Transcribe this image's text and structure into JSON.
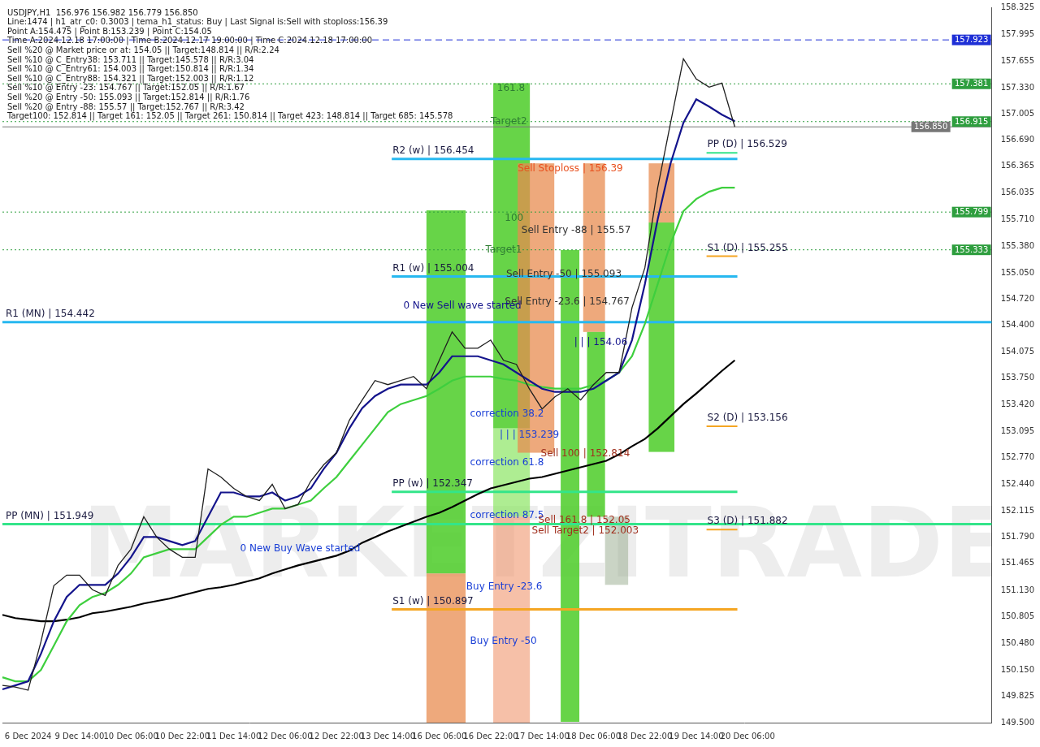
{
  "chart_data": {
    "type": "line",
    "header_lines": [
      "USDJPY,H1  156.976 156.982 156.779 156.850",
      "Line:1474 | h1_atr_c0: 0.3003 | tema_h1_status: Buy | Last Signal is:Sell with stoploss:156.39",
      "Point A:154.475 | Point B:153.239 | Point C:154.05",
      "Time A:2024.12.18 17:00:00 | Time B:2024.12.17 19:00:00 | Time C:2024.12.18 17:00:00",
      "Sell %20 @ Market price or at: 154.05 || Target:148.814 || R/R:2.24",
      "Sell %10 @ C_Entry38: 153.711 || Target:145.578 || R/R:3.04",
      "Sell %10 @ C_Entry61: 154.003 || Target:150.814 || R/R:1.34",
      "Sell %10 @ C_Entry88: 154.321 || Target:152.003 || R/R:1.12",
      "Sell %10 @ Entry -23: 154.767 || Target:152.05 || R/R:1.67",
      "Sell %20 @ Entry -50: 155.093 || Target:152.814 || R/R:1.76",
      "Sell %20 @ Entry -88: 155.57 || Target:152.767 || R/R:3.42",
      "Target100: 152.814 || Target 161: 152.05 || Target 261: 150.814 || Target 423: 148.814 || Target 685: 145.578"
    ],
    "watermark": "MARKETZITRADE",
    "categories": [
      null,
      null,
      "6 Dec 2024",
      null,
      null,
      null,
      "9 Dec 14:00",
      null,
      null,
      null,
      "10 Dec 06:00",
      null,
      null,
      null,
      "10 Dec 22:00",
      null,
      null,
      null,
      "11 Dec 14:00",
      null,
      null,
      null,
      "12 Dec 06:00",
      null,
      null,
      null,
      "12 Dec 22:00",
      null,
      null,
      null,
      "13 Dec 14:00",
      null,
      null,
      null,
      "16 Dec 06:00",
      null,
      null,
      null,
      "16 Dec 22:00",
      null,
      null,
      null,
      "17 Dec 14:00",
      null,
      null,
      null,
      "18 Dec 06:00",
      null,
      null,
      null,
      "18 Dec 22:00",
      null,
      null,
      null,
      "19 Dec 14:00",
      null,
      null,
      null,
      "20 Dec 06:00",
      null,
      null,
      null,
      null,
      null,
      null,
      null,
      null,
      null,
      null,
      null,
      null,
      null,
      null,
      null,
      null,
      null,
      null,
      null
    ],
    "series": [
      {
        "color": "#1f1f1f",
        "values": [
          149.96,
          149.94,
          149.9,
          150.5,
          151.19,
          151.32,
          151.32,
          151.14,
          151.07,
          151.44,
          151.64,
          152.04,
          151.79,
          151.64,
          151.54,
          151.54,
          152.63,
          152.53,
          152.39,
          152.29,
          152.24,
          152.44,
          152.14,
          152.19,
          152.48,
          152.68,
          152.83,
          153.23,
          153.48,
          153.72,
          153.67,
          153.72,
          153.77,
          153.62,
          153.97,
          154.32,
          154.12,
          154.12,
          154.22,
          153.97,
          153.92,
          153.62,
          153.37,
          153.52,
          153.62,
          153.48,
          153.67,
          153.82,
          153.82,
          154.62,
          155.11,
          156.1,
          156.9,
          157.69,
          157.44,
          157.34,
          157.39,
          156.85,
          null,
          null,
          null,
          null,
          null,
          null,
          null,
          null,
          null,
          null,
          null,
          null,
          null,
          null,
          null,
          null,
          null,
          null,
          null,
          null
        ]
      },
      {
        "color": "#14148c",
        "values": [
          149.91,
          149.96,
          150.01,
          150.35,
          150.75,
          151.05,
          151.2,
          151.2,
          151.2,
          151.34,
          151.54,
          151.79,
          151.79,
          151.74,
          151.69,
          151.74,
          152.04,
          152.34,
          152.34,
          152.29,
          152.29,
          152.34,
          152.24,
          152.29,
          152.39,
          152.63,
          152.83,
          153.13,
          153.38,
          153.53,
          153.62,
          153.67,
          153.67,
          153.67,
          153.82,
          154.02,
          154.02,
          154.02,
          153.97,
          153.92,
          153.82,
          153.72,
          153.62,
          153.58,
          153.58,
          153.58,
          153.62,
          153.72,
          153.82,
          154.22,
          154.91,
          155.71,
          156.4,
          156.9,
          157.19,
          157.1,
          157.0,
          156.92,
          null,
          null,
          null,
          null,
          null,
          null,
          null,
          null,
          null,
          null,
          null,
          null,
          null,
          null,
          null,
          null,
          null,
          null,
          null,
          null
        ]
      },
      {
        "color": "#3ecf3e",
        "values": [
          150.06,
          150.01,
          150.01,
          150.15,
          150.45,
          150.75,
          150.95,
          151.05,
          151.1,
          151.2,
          151.34,
          151.54,
          151.59,
          151.64,
          151.64,
          151.64,
          151.79,
          151.94,
          152.04,
          152.04,
          152.09,
          152.14,
          152.14,
          152.19,
          152.24,
          152.39,
          152.53,
          152.73,
          152.93,
          153.13,
          153.33,
          153.43,
          153.48,
          153.53,
          153.62,
          153.72,
          153.77,
          153.77,
          153.77,
          153.74,
          153.72,
          153.67,
          153.64,
          153.62,
          153.62,
          153.62,
          153.67,
          153.72,
          153.82,
          154.02,
          154.42,
          154.91,
          155.41,
          155.81,
          155.96,
          156.05,
          156.1,
          156.1,
          null,
          null,
          null,
          null,
          null,
          null,
          null,
          null,
          null,
          null,
          null,
          null,
          null,
          null,
          null,
          null,
          null,
          null,
          null,
          null
        ]
      },
      {
        "color": "#000000",
        "values": [
          150.83,
          150.79,
          150.77,
          150.75,
          150.75,
          150.77,
          150.8,
          150.85,
          150.87,
          150.9,
          150.93,
          150.97,
          151.0,
          151.03,
          151.07,
          151.11,
          151.15,
          151.17,
          151.2,
          151.24,
          151.28,
          151.34,
          151.39,
          151.44,
          151.48,
          151.52,
          151.56,
          151.62,
          151.72,
          151.79,
          151.86,
          151.92,
          151.98,
          152.04,
          152.09,
          152.16,
          152.24,
          152.32,
          152.39,
          152.43,
          152.47,
          152.51,
          152.53,
          152.57,
          152.61,
          152.65,
          152.69,
          152.73,
          152.81,
          152.91,
          153.0,
          153.13,
          153.28,
          153.43,
          153.56,
          153.7,
          153.84,
          153.97,
          null,
          null,
          null,
          null,
          null,
          null,
          null,
          null,
          null,
          null,
          null,
          null,
          null,
          null,
          null,
          null,
          null,
          null,
          null,
          null
        ]
      }
    ],
    "ylim": [
      149.5,
      158.325
    ],
    "yticks": [
      158.325,
      157.995,
      157.655,
      {
        "value": 157.33,
        "label": "157.330"
      },
      157.005,
      {
        "value": 156.69,
        "label": "156.690"
      },
      156.365,
      156.035,
      {
        "value": 155.71,
        "label": "155.710"
      },
      {
        "value": 155.38,
        "label": "155.380"
      },
      {
        "value": 155.05,
        "label": "155.050"
      },
      {
        "value": 154.72,
        "label": "154.720"
      },
      {
        "value": 154.4,
        "label": "154.400"
      },
      154.075,
      {
        "value": 153.75,
        "label": "153.750"
      },
      {
        "value": 153.42,
        "label": "153.420"
      },
      153.095,
      {
        "value": 152.77,
        "label": "152.770"
      },
      {
        "value": 152.44,
        "label": "152.440"
      },
      152.115,
      {
        "value": 151.79,
        "label": "151.790"
      },
      151.465,
      {
        "value": 151.13,
        "label": "151.130"
      },
      150.805,
      {
        "value": 150.48,
        "label": "150.480"
      },
      {
        "value": 150.15,
        "label": "150.150"
      },
      149.825,
      {
        "value": 149.5,
        "label": "149.500"
      }
    ],
    "grid": false,
    "zones": [
      {
        "x": [
          33.0,
          36.05
        ],
        "y": [
          151.34,
          155.82
        ],
        "color": "rgba(76,205,40,0.85)"
      },
      {
        "x": [
          33.0,
          36.05
        ],
        "y": [
          149.5,
          151.34
        ],
        "color": "rgba(232,140,80,0.75)"
      },
      {
        "x": [
          38.2,
          41.05
        ],
        "y": [
          153.13,
          157.39
        ],
        "color": "rgba(76,205,40,0.85)"
      },
      {
        "x": [
          38.2,
          41.05
        ],
        "y": [
          152.04,
          153.13
        ],
        "color": "rgba(140,230,100,0.7)"
      },
      {
        "x": [
          38.2,
          41.05
        ],
        "y": [
          149.5,
          152.04
        ],
        "color": "rgba(240,150,110,0.6)"
      },
      {
        "x": [
          40.1,
          42.95
        ],
        "y": [
          152.83,
          156.4
        ],
        "color": "rgba(232,140,80,0.75)"
      },
      {
        "x": [
          43.45,
          44.9
        ],
        "y": [
          149.51,
          155.33
        ],
        "color": "rgba(76,205,40,0.85)"
      },
      {
        "x": [
          45.2,
          46.9
        ],
        "y": [
          154.32,
          156.4
        ],
        "color": "rgba(232,140,80,0.75)"
      },
      {
        "x": [
          45.5,
          46.9
        ],
        "y": [
          152.04,
          154.32
        ],
        "color": "rgba(76,205,40,0.85)"
      },
      {
        "x": [
          46.9,
          48.7
        ],
        "y": [
          151.2,
          152.04
        ],
        "color": "rgba(150,170,140,0.5)"
      },
      {
        "x": [
          50.3,
          52.3
        ],
        "y": [
          155.67,
          156.4
        ],
        "color": "rgba(232,140,80,0.75)"
      },
      {
        "x": [
          50.3,
          52.3
        ],
        "y": [
          152.84,
          155.67
        ],
        "color": "rgba(76,205,40,0.85)"
      }
    ],
    "levels": [
      {
        "label": "R1 (MN) | 154.442",
        "value": 154.442,
        "color": "#27b8f0"
      },
      {
        "label": "PP (MN) | 151.949",
        "value": 151.949,
        "color": "#33e58a"
      },
      {
        "label": "R2 (w) | 156.454",
        "value": 156.454,
        "color": "#27b8f0",
        "x": [
          30.3,
          57.2
        ]
      },
      {
        "label": "R1 (w) | 155.004",
        "value": 155.004,
        "color": "#27b8f0",
        "x": [
          30.3,
          57.2
        ]
      },
      {
        "label": "PP (w) | 152.347",
        "value": 152.347,
        "color": "#33e58a",
        "x": [
          30.3,
          57.2
        ]
      },
      {
        "label": "S1 (w) | 150.897",
        "value": 150.897,
        "color": "#f5a623",
        "x": [
          30.3,
          57.2
        ]
      },
      {
        "label": "PP (D) | 156.529",
        "value": 156.529,
        "color": "#33e58a",
        "x": [
          54.8,
          57.2
        ]
      },
      {
        "label": "S1 (D) | 155.255",
        "value": 155.255,
        "color": "#f5a623",
        "x": [
          54.8,
          57.2
        ]
      },
      {
        "label": "S2 (D) | 153.156",
        "value": 153.156,
        "color": "#f5a623",
        "x": [
          54.8,
          57.2
        ]
      },
      {
        "label": "S3 (D) | 151.882",
        "value": 151.882,
        "color": "#f5a623",
        "x": [
          54.8,
          57.2
        ]
      }
    ],
    "price_tags": [
      {
        "value": 157.923,
        "color": "#1e2fd6",
        "line_style": "dashed"
      },
      {
        "value": 157.381,
        "color": "#2e9e3e",
        "line_style": "dotted"
      },
      {
        "value": 156.915,
        "color": "#2e9e3e",
        "line_style": "dotted"
      },
      {
        "value": 156.85,
        "label": "156.850",
        "color": "#777777",
        "line_style": "solid"
      },
      {
        "value": 155.799,
        "color": "#2e9e3e",
        "line_style": "dotted"
      },
      {
        "value": 155.333,
        "color": "#2e9e3e",
        "line_style": "dotted"
      }
    ],
    "annotations": [
      {
        "text": "Sell Stoploss | 156.39",
        "x": 40.1,
        "y": 156.33,
        "color": "#e8501e"
      },
      {
        "text": "Sell Entry -88 | 155.57",
        "x": 40.4,
        "y": 155.57,
        "color": "#333333"
      },
      {
        "text": "Sell Entry -50 | 155.093",
        "x": 39.2,
        "y": 155.03,
        "color": "#333333"
      },
      {
        "text": "Sell Entry -23.6 | 154.767",
        "x": 39.1,
        "y": 154.69,
        "color": "#333333"
      },
      {
        "text": "0 New Sell wave started",
        "x": 31.2,
        "y": 154.64,
        "color": "#14148c"
      },
      {
        "text": "| | | 154.06",
        "x": 44.5,
        "y": 154.19,
        "color": "#14148c"
      },
      {
        "text": "correction 38.2",
        "x": 36.4,
        "y": 153.31,
        "color": "#1a3fd6"
      },
      {
        "text": "| | | 153.239",
        "x": 38.7,
        "y": 153.05,
        "color": "#1a3fd6"
      },
      {
        "text": "correction 61.8",
        "x": 36.4,
        "y": 152.71,
        "color": "#1a3fd6"
      },
      {
        "text": "Sell 100 | 152.814",
        "x": 41.9,
        "y": 152.82,
        "color": "#a0301e"
      },
      {
        "text": "correction 87.5",
        "x": 36.4,
        "y": 152.06,
        "color": "#1a3fd6"
      },
      {
        "text": "Sell 161.8 | 152.05",
        "x": 41.7,
        "y": 152.0,
        "color": "#a0301e"
      },
      {
        "text": "Sell Target2 | 152.003",
        "x": 41.2,
        "y": 151.87,
        "color": "#a0301e"
      },
      {
        "text": "Buy Entry -23.6",
        "x": 36.1,
        "y": 151.17,
        "color": "#1a3fd6"
      },
      {
        "text": "Buy Entry -50",
        "x": 36.4,
        "y": 150.5,
        "color": "#1a3fd6"
      },
      {
        "text": "0 New Buy Wave started",
        "x": 18.5,
        "y": 151.64,
        "color": "#1a3fd6"
      },
      {
        "text": "161.8",
        "x": 38.5,
        "y": 157.32,
        "color": "#2e7d32"
      },
      {
        "text": "100",
        "x": 39.1,
        "y": 155.72,
        "color": "#2e7d32"
      },
      {
        "text": "Target2",
        "x": 38.0,
        "y": 156.91,
        "color": "#2e7d32"
      },
      {
        "text": "Target1",
        "x": 37.6,
        "y": 155.33,
        "color": "#2e7d32"
      }
    ]
  }
}
